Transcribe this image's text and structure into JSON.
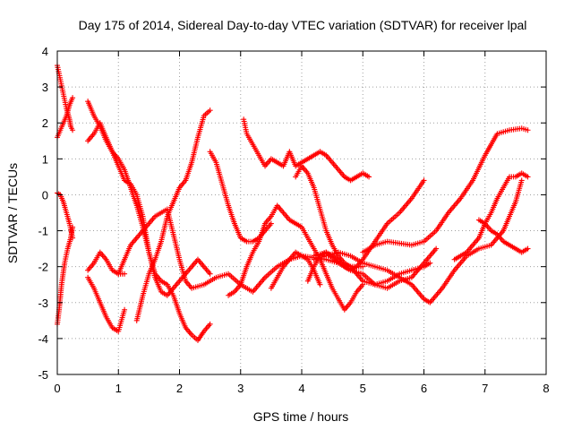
{
  "chart_data": {
    "type": "scatter",
    "title": "Day 175 of 2014, Sidereal Day-to-day VTEC variation (SDTVAR) for receiver lpal",
    "xlabel": "GPS time / hours",
    "ylabel": "SDTVAR / TECUs",
    "xlim": [
      0,
      8
    ],
    "ylim": [
      -5,
      4
    ],
    "xticks": [
      "0",
      "1",
      "2",
      "3",
      "4",
      "5",
      "6",
      "7",
      "8"
    ],
    "yticks": [
      "-5",
      "-4",
      "-3",
      "-2",
      "-1",
      "0",
      "1",
      "2",
      "3",
      "4"
    ],
    "grid": true,
    "marker": "+",
    "color": "#ff0000",
    "series": [
      {
        "x": [
          0.0,
          0.05,
          0.1,
          0.15,
          0.2,
          0.22,
          0.25
        ],
        "y": [
          3.6,
          3.2,
          2.8,
          2.4,
          2.1,
          1.9,
          1.8
        ]
      },
      {
        "x": [
          0.0,
          0.05,
          0.1,
          0.15,
          0.2,
          0.25
        ],
        "y": [
          1.6,
          1.8,
          2.0,
          2.2,
          2.5,
          2.7
        ]
      },
      {
        "x": [
          0.0,
          0.05,
          0.1,
          0.15,
          0.2,
          0.25
        ],
        "y": [
          0.05,
          0.0,
          -0.2,
          -0.5,
          -0.8,
          -1.2
        ]
      },
      {
        "x": [
          0.0,
          0.03,
          0.07,
          0.12,
          0.17,
          0.22,
          0.25
        ],
        "y": [
          -3.6,
          -3.2,
          -2.5,
          -1.9,
          -1.5,
          -1.2,
          -0.9
        ]
      },
      {
        "x": [
          0.5,
          0.6,
          0.7,
          0.8,
          0.9,
          1.0,
          1.1,
          1.2,
          1.3,
          1.4,
          1.5,
          1.6,
          1.7,
          1.8,
          1.9,
          2.0,
          2.1,
          2.2,
          2.3,
          2.4,
          2.5
        ],
        "y": [
          2.6,
          2.2,
          1.9,
          1.5,
          1.2,
          1.0,
          0.7,
          0.2,
          -0.3,
          -0.9,
          -1.6,
          -2.3,
          -2.7,
          -2.8,
          -2.6,
          -2.4,
          -2.2,
          -2.0,
          -1.8,
          -2.0,
          -2.2
        ]
      },
      {
        "x": [
          0.5,
          0.6,
          0.7,
          0.8,
          0.9,
          1.0,
          1.1,
          1.2,
          1.3,
          1.4,
          1.5,
          1.6,
          1.7,
          1.8,
          1.9,
          2.0,
          2.1,
          2.2,
          2.3,
          2.4,
          2.5
        ],
        "y": [
          1.5,
          1.7,
          2.0,
          1.6,
          1.2,
          0.8,
          0.4,
          0.3,
          0.0,
          -0.6,
          -1.6,
          -2.2,
          -2.4,
          -2.5,
          -2.8,
          -3.3,
          -3.7,
          -3.9,
          -4.05,
          -3.8,
          -3.6
        ]
      },
      {
        "x": [
          0.5,
          0.6,
          0.7,
          0.8,
          0.9,
          1.0,
          1.1
        ],
        "y": [
          -2.1,
          -1.9,
          -1.6,
          -1.8,
          -2.1,
          -2.2,
          -2.2
        ]
      },
      {
        "x": [
          0.5,
          0.6,
          0.7,
          0.8,
          0.9,
          1.0,
          1.1
        ],
        "y": [
          -2.3,
          -2.6,
          -3.0,
          -3.4,
          -3.7,
          -3.8,
          -3.2
        ]
      },
      {
        "x": [
          1.3,
          1.4,
          1.5,
          1.6,
          1.7,
          1.8,
          1.9,
          2.0,
          2.1,
          2.2,
          2.3,
          2.4,
          2.5
        ],
        "y": [
          -3.5,
          -2.8,
          -2.2,
          -1.8,
          -1.3,
          -0.6,
          -0.2,
          0.2,
          0.4,
          0.9,
          1.6,
          2.2,
          2.35
        ]
      },
      {
        "x": [
          1.0,
          1.2,
          1.4,
          1.6,
          1.8,
          2.0,
          2.1,
          2.2,
          2.4,
          2.6,
          2.8,
          3.0,
          3.2,
          3.4,
          3.6,
          3.8,
          4.0,
          4.2,
          4.4,
          4.6,
          4.8,
          5.0
        ],
        "y": [
          -2.2,
          -1.4,
          -1.0,
          -0.6,
          -0.4,
          -1.8,
          -2.4,
          -2.6,
          -2.5,
          -2.3,
          -2.2,
          -2.5,
          -2.7,
          -2.3,
          -2.0,
          -1.8,
          -1.7,
          -1.75,
          -1.8,
          -1.9,
          -2.0,
          -2.0
        ]
      },
      {
        "x": [
          2.5,
          2.6,
          2.7,
          2.8,
          2.9,
          3.0,
          3.1,
          3.2,
          3.3,
          3.4,
          3.5
        ],
        "y": [
          1.2,
          0.9,
          0.3,
          -0.3,
          -0.8,
          -1.2,
          -1.3,
          -1.3,
          -1.2,
          -1.0,
          -0.8
        ]
      },
      {
        "x": [
          3.05,
          3.1,
          3.2,
          3.3,
          3.4,
          3.5,
          3.6,
          3.7,
          3.8,
          3.9,
          4.0,
          4.1,
          4.2,
          4.3,
          4.4,
          4.5,
          4.6,
          4.7,
          4.8,
          4.9,
          5.0,
          5.1
        ],
        "y": [
          2.1,
          1.7,
          1.4,
          1.1,
          0.8,
          1.0,
          0.9,
          0.8,
          1.2,
          0.8,
          0.9,
          1.0,
          1.1,
          1.2,
          1.1,
          0.9,
          0.7,
          0.5,
          0.4,
          0.5,
          0.6,
          0.5
        ]
      },
      {
        "x": [
          2.8,
          2.9,
          3.0,
          3.1,
          3.2,
          3.3,
          3.4,
          3.5,
          3.6,
          3.7,
          3.8,
          3.9,
          4.0,
          4.1,
          4.2,
          4.3,
          4.4,
          4.5,
          4.6,
          4.7,
          4.8,
          4.9,
          5.0
        ],
        "y": [
          -2.8,
          -2.7,
          -2.5,
          -2.0,
          -1.6,
          -1.3,
          -0.8,
          -0.6,
          -0.3,
          -0.5,
          -0.7,
          -0.8,
          -0.9,
          -1.2,
          -1.5,
          -1.8,
          -2.2,
          -2.6,
          -2.9,
          -3.2,
          -3.0,
          -2.7,
          -2.5
        ]
      },
      {
        "x": [
          3.5,
          3.6,
          3.7,
          3.8,
          3.9,
          4.0,
          4.1,
          4.2,
          4.3
        ],
        "y": [
          -2.6,
          -2.3,
          -2.0,
          -1.8,
          -1.6,
          -1.7,
          -1.8,
          -2.1,
          -2.5
        ]
      },
      {
        "x": [
          3.9,
          4.0,
          4.1,
          4.2,
          4.3,
          4.4,
          4.5,
          4.6,
          4.7,
          4.8,
          4.9,
          5.0,
          5.2,
          5.4,
          5.6,
          5.8,
          6.0,
          6.1
        ],
        "y": [
          0.5,
          0.8,
          0.6,
          0.2,
          -0.4,
          -1.0,
          -1.4,
          -1.7,
          -1.9,
          -2.0,
          -2.2,
          -2.4,
          -2.5,
          -2.4,
          -2.2,
          -2.1,
          -2.0,
          -1.9
        ]
      },
      {
        "x": [
          4.1,
          4.2,
          4.3,
          4.4,
          4.5,
          4.6,
          4.7,
          4.8,
          4.9,
          5.0,
          5.2,
          5.4,
          5.6,
          5.8,
          6.0
        ],
        "y": [
          -2.4,
          -2.0,
          -1.7,
          -1.6,
          -1.7,
          -1.8,
          -2.0,
          -2.1,
          -2.0,
          -1.8,
          -1.3,
          -0.8,
          -0.5,
          -0.1,
          0.4
        ]
      },
      {
        "x": [
          4.2,
          4.4,
          4.6,
          4.8,
          5.0,
          5.2,
          5.4,
          5.6,
          5.8,
          6.0,
          6.2
        ],
        "y": [
          -1.7,
          -1.6,
          -1.9,
          -2.1,
          -2.2,
          -2.5,
          -2.6,
          -2.4,
          -2.3,
          -1.9,
          -1.5
        ]
      },
      {
        "x": [
          4.2,
          4.4,
          4.6,
          4.8,
          5.0,
          5.2,
          5.4,
          5.6,
          5.8,
          6.0,
          6.1,
          6.3,
          6.5,
          6.7,
          6.9,
          7.1,
          7.3,
          7.5,
          7.6
        ],
        "y": [
          -1.8,
          -1.7,
          -1.6,
          -1.7,
          -1.9,
          -2.0,
          -2.1,
          -2.3,
          -2.5,
          -2.9,
          -3.0,
          -2.6,
          -2.1,
          -1.7,
          -1.5,
          -1.4,
          -1.0,
          -0.2,
          0.4
        ]
      },
      {
        "x": [
          5.0,
          5.2,
          5.4,
          5.6,
          5.8,
          6.0,
          6.2,
          6.4,
          6.6,
          6.8,
          7.0,
          7.2,
          7.4,
          7.6,
          7.7
        ],
        "y": [
          -1.6,
          -1.4,
          -1.3,
          -1.35,
          -1.4,
          -1.3,
          -1.0,
          -0.5,
          -0.1,
          0.4,
          1.1,
          1.7,
          1.8,
          1.85,
          1.8
        ]
      },
      {
        "x": [
          6.5,
          6.6,
          6.7,
          6.8,
          6.9,
          7.0,
          7.1,
          7.2,
          7.3,
          7.4,
          7.5,
          7.6,
          7.7
        ],
        "y": [
          -1.8,
          -1.7,
          -1.6,
          -1.4,
          -1.2,
          -0.8,
          -0.5,
          -0.1,
          0.2,
          0.5,
          0.5,
          0.6,
          0.5
        ]
      },
      {
        "x": [
          6.9,
          7.0,
          7.1,
          7.2,
          7.3,
          7.4,
          7.5,
          7.6,
          7.7
        ],
        "y": [
          -0.7,
          -0.8,
          -1.0,
          -1.1,
          -1.3,
          -1.4,
          -1.5,
          -1.6,
          -1.5
        ]
      }
    ]
  }
}
